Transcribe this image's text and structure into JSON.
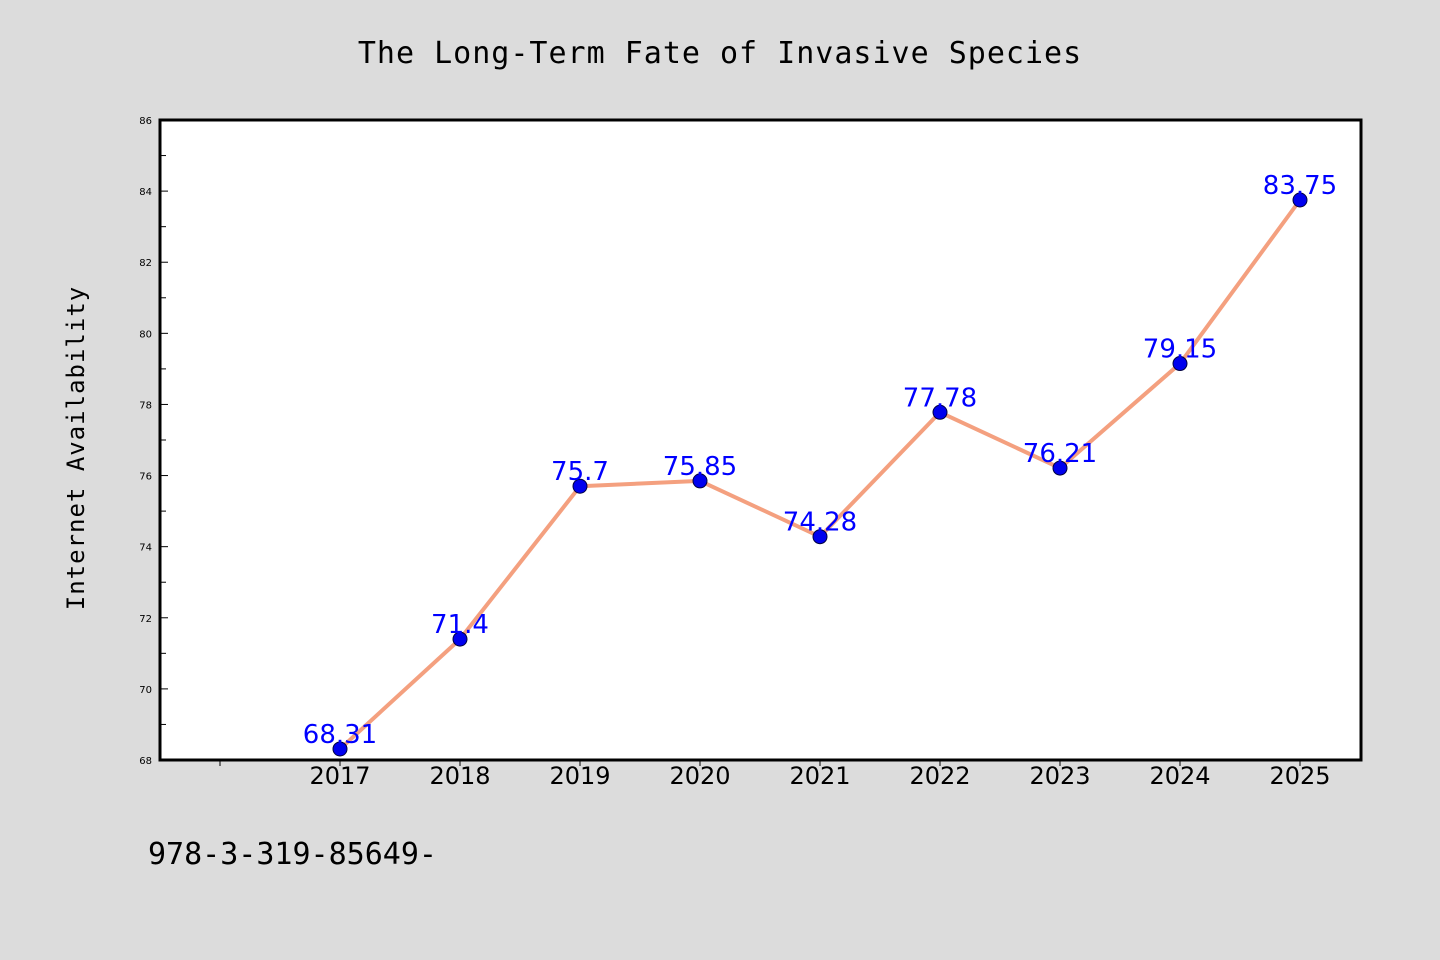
{
  "chart_data": {
    "type": "line",
    "title": "The Long-Term Fate of Invasive Species",
    "xlabel": "",
    "ylabel": "Internet Availability",
    "categories": [
      "2017",
      "2018",
      "2019",
      "2020",
      "2021",
      "2022",
      "2023",
      "2024",
      "2025"
    ],
    "series": [
      {
        "values": [
          68.31,
          71.4,
          75.7,
          75.85,
          74.28,
          77.78,
          76.21,
          79.15,
          83.75
        ],
        "labels": [
          "68.31",
          "71.4",
          "75.7",
          "75.85",
          "74.28",
          "77.78",
          "76.21",
          "79.15",
          "83.75"
        ],
        "line_color": "#f4a07f",
        "marker_color": "#0000ee"
      }
    ],
    "ylim": [
      68,
      86
    ],
    "yticks": [
      "68",
      "70",
      "72",
      "74",
      "76",
      "78",
      "80",
      "82",
      "84",
      "86"
    ],
    "grid": false,
    "legend": "none"
  },
  "footnote": "978-3-319-85649-",
  "colors": {
    "background": "#dcdcdc",
    "plot_area": "#ffffff",
    "data_label": "#0000ff"
  }
}
